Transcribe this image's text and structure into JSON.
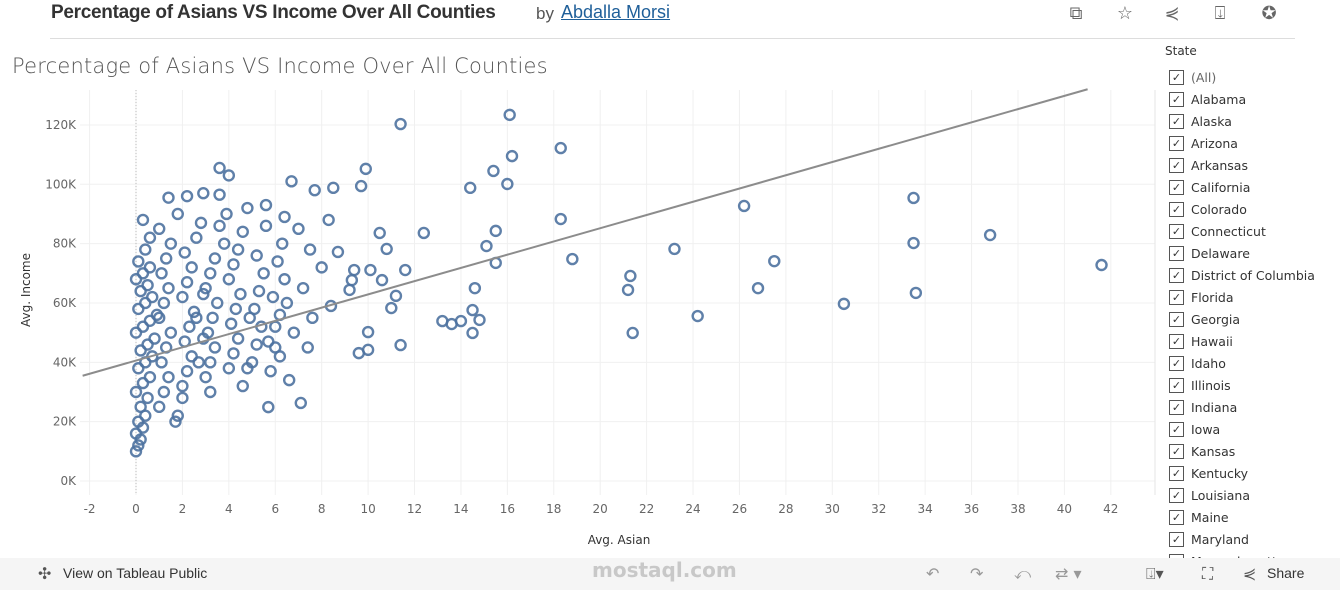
{
  "header": {
    "title": "Percentage of Asians VS Income Over All Counties",
    "by": "by",
    "author": "Abdalla Morsi",
    "icons": [
      "duplicate-icon",
      "star-icon",
      "share-icon",
      "download-icon",
      "badge-icon"
    ]
  },
  "viz_title": "Percentage of Asians VS Income Over All Counties",
  "legend": {
    "title": "State",
    "items": [
      "(All)",
      "Alabama",
      "Alaska",
      "Arizona",
      "Arkansas",
      "California",
      "Colorado",
      "Connecticut",
      "Delaware",
      "District of Columbia",
      "Florida",
      "Georgia",
      "Hawaii",
      "Idaho",
      "Illinois",
      "Indiana",
      "Iowa",
      "Kansas",
      "Kentucky",
      "Louisiana",
      "Maine",
      "Maryland",
      "Massachusetts"
    ]
  },
  "toolbar": {
    "view_label": "View on Tableau Public",
    "share_label": "Share"
  },
  "watermark": "mostaql.com",
  "chart_data": {
    "type": "scatter",
    "title": "Percentage of Asians VS Income Over All Counties",
    "xlabel": "Avg. Asian",
    "ylabel": "Avg. Income",
    "xlim": [
      -2.5,
      44
    ],
    "ylim": [
      -3000,
      131000
    ],
    "x_ticks": [
      -2,
      0,
      2,
      4,
      6,
      8,
      10,
      12,
      14,
      16,
      18,
      20,
      22,
      24,
      26,
      28,
      30,
      32,
      34,
      36,
      38,
      40,
      42
    ],
    "y_ticks": [
      {
        "v": 0,
        "label": "0K"
      },
      {
        "v": 20000,
        "label": "20K"
      },
      {
        "v": 40000,
        "label": "40K"
      },
      {
        "v": 60000,
        "label": "60K"
      },
      {
        "v": 80000,
        "label": "80K"
      },
      {
        "v": 100000,
        "label": "100K"
      },
      {
        "v": 120000,
        "label": "120K"
      }
    ],
    "grid": true,
    "marker_color": "#4e72a0",
    "trend_line": {
      "intercept": 40600,
      "slope": 2230,
      "color": "#8c8c8c"
    },
    "points": [
      [
        11.4,
        120300
      ],
      [
        16.1,
        123400
      ],
      [
        16.2,
        109500
      ],
      [
        18.3,
        112200
      ],
      [
        15.4,
        104500
      ],
      [
        14.4,
        98800
      ],
      [
        16.0,
        100100
      ],
      [
        9.9,
        105200
      ],
      [
        9.7,
        99400
      ],
      [
        8.5,
        98800
      ],
      [
        7.7,
        98000
      ],
      [
        6.7,
        101000
      ],
      [
        18.3,
        88300
      ],
      [
        26.2,
        92700
      ],
      [
        33.5,
        95400
      ],
      [
        33.5,
        80200
      ],
      [
        36.8,
        82900
      ],
      [
        41.6,
        72800
      ],
      [
        33.6,
        63400
      ],
      [
        30.5,
        59700
      ],
      [
        26.8,
        65000
      ],
      [
        27.5,
        74100
      ],
      [
        23.2,
        78200
      ],
      [
        21.3,
        69100
      ],
      [
        21.2,
        64400
      ],
      [
        21.4,
        49900
      ],
      [
        24.2,
        55600
      ],
      [
        18.8,
        74800
      ],
      [
        15.5,
        84300
      ],
      [
        15.1,
        79200
      ],
      [
        15.5,
        73500
      ],
      [
        14.6,
        65000
      ],
      [
        14.5,
        57600
      ],
      [
        14.8,
        54300
      ],
      [
        14.5,
        49900
      ],
      [
        13.2,
        53900
      ],
      [
        14.0,
        53900
      ],
      [
        13.6,
        52900
      ],
      [
        12.4,
        83600
      ],
      [
        11.6,
        71100
      ],
      [
        11.2,
        62400
      ],
      [
        11.0,
        58300
      ],
      [
        11.4,
        45800
      ],
      [
        10.0,
        50200
      ],
      [
        10.0,
        44200
      ],
      [
        9.6,
        43100
      ],
      [
        10.5,
        83600
      ],
      [
        10.8,
        78200
      ],
      [
        10.1,
        71100
      ],
      [
        10.6,
        67700
      ],
      [
        9.4,
        71100
      ],
      [
        9.3,
        67700
      ],
      [
        9.2,
        64400
      ],
      [
        8.3,
        88000
      ],
      [
        8.7,
        77200
      ],
      [
        8.4,
        59000
      ],
      [
        5.7,
        24900
      ],
      [
        7.1,
        26300
      ],
      [
        3.6,
        105500
      ],
      [
        4.0,
        103000
      ],
      [
        2.9,
        97000
      ],
      [
        2.2,
        96000
      ],
      [
        1.4,
        95500
      ],
      [
        3.6,
        96500
      ],
      [
        4.8,
        92000
      ],
      [
        5.6,
        93000
      ],
      [
        6.4,
        89000
      ],
      [
        7.0,
        85000
      ],
      [
        7.5,
        78000
      ],
      [
        8.0,
        72000
      ],
      [
        7.2,
        65000
      ],
      [
        6.5,
        60000
      ],
      [
        7.6,
        55000
      ],
      [
        6.8,
        50000
      ],
      [
        7.4,
        45000
      ],
      [
        6.2,
        42000
      ],
      [
        5.8,
        37000
      ],
      [
        6.6,
        34000
      ],
      [
        4.6,
        32000
      ],
      [
        3.2,
        30000
      ],
      [
        2.0,
        28000
      ],
      [
        1.7,
        20000
      ],
      [
        1.8,
        22000
      ],
      [
        0.0,
        10000
      ],
      [
        0.1,
        12000
      ],
      [
        0.2,
        14000
      ],
      [
        0.0,
        16000
      ],
      [
        0.3,
        18000
      ],
      [
        0.1,
        20000
      ],
      [
        0.4,
        22000
      ],
      [
        0.2,
        25000
      ],
      [
        0.5,
        28000
      ],
      [
        0.0,
        30000
      ],
      [
        0.3,
        33000
      ],
      [
        0.6,
        35000
      ],
      [
        0.1,
        38000
      ],
      [
        0.4,
        40000
      ],
      [
        0.7,
        42000
      ],
      [
        0.2,
        44000
      ],
      [
        0.5,
        46000
      ],
      [
        0.8,
        48000
      ],
      [
        0.0,
        50000
      ],
      [
        0.3,
        52000
      ],
      [
        0.6,
        54000
      ],
      [
        0.9,
        56000
      ],
      [
        0.1,
        58000
      ],
      [
        0.4,
        60000
      ],
      [
        0.7,
        62000
      ],
      [
        0.2,
        64000
      ],
      [
        0.5,
        66000
      ],
      [
        0.0,
        68000
      ],
      [
        0.3,
        70000
      ],
      [
        0.6,
        72000
      ],
      [
        0.1,
        74000
      ],
      [
        0.4,
        78000
      ],
      [
        0.6,
        82000
      ],
      [
        0.3,
        88000
      ],
      [
        1.0,
        25000
      ],
      [
        1.2,
        30000
      ],
      [
        1.4,
        35000
      ],
      [
        1.1,
        40000
      ],
      [
        1.3,
        45000
      ],
      [
        1.5,
        50000
      ],
      [
        1.0,
        55000
      ],
      [
        1.2,
        60000
      ],
      [
        1.4,
        65000
      ],
      [
        1.1,
        70000
      ],
      [
        1.3,
        75000
      ],
      [
        1.5,
        80000
      ],
      [
        1.0,
        85000
      ],
      [
        1.8,
        90000
      ],
      [
        2.0,
        32000
      ],
      [
        2.2,
        37000
      ],
      [
        2.4,
        42000
      ],
      [
        2.1,
        47000
      ],
      [
        2.3,
        52000
      ],
      [
        2.5,
        57000
      ],
      [
        2.0,
        62000
      ],
      [
        2.2,
        67000
      ],
      [
        2.4,
        72000
      ],
      [
        2.1,
        77000
      ],
      [
        2.6,
        82000
      ],
      [
        2.8,
        87000
      ],
      [
        2.7,
        40000
      ],
      [
        2.9,
        48000
      ],
      [
        2.6,
        55000
      ],
      [
        2.9,
        63000
      ],
      [
        3.0,
        35000
      ],
      [
        3.2,
        40000
      ],
      [
        3.4,
        45000
      ],
      [
        3.1,
        50000
      ],
      [
        3.3,
        55000
      ],
      [
        3.5,
        60000
      ],
      [
        3.0,
        65000
      ],
      [
        3.2,
        70000
      ],
      [
        3.4,
        75000
      ],
      [
        3.8,
        80000
      ],
      [
        3.6,
        86000
      ],
      [
        3.9,
        90000
      ],
      [
        4.0,
        38000
      ],
      [
        4.2,
        43000
      ],
      [
        4.4,
        48000
      ],
      [
        4.1,
        53000
      ],
      [
        4.3,
        58000
      ],
      [
        4.5,
        63000
      ],
      [
        4.0,
        68000
      ],
      [
        4.2,
        73000
      ],
      [
        4.4,
        78000
      ],
      [
        4.6,
        84000
      ],
      [
        4.8,
        38000
      ],
      [
        4.9,
        55000
      ],
      [
        5.0,
        40000
      ],
      [
        5.2,
        46000
      ],
      [
        5.4,
        52000
      ],
      [
        5.1,
        58000
      ],
      [
        5.3,
        64000
      ],
      [
        5.5,
        70000
      ],
      [
        5.2,
        76000
      ],
      [
        5.6,
        86000
      ],
      [
        5.7,
        47000
      ],
      [
        5.9,
        62000
      ],
      [
        6.0,
        45000
      ],
      [
        6.2,
        56000
      ],
      [
        6.4,
        68000
      ],
      [
        6.1,
        74000
      ],
      [
        6.3,
        80000
      ],
      [
        6.0,
        52000
      ]
    ]
  }
}
